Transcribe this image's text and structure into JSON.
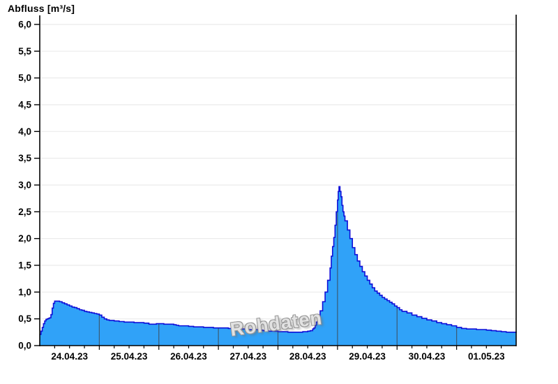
{
  "chart": {
    "title": "Abfluss [m³/s]",
    "watermark": "Rohdaten"
  },
  "chart_data": {
    "type": "area",
    "title": "Abfluss [m³/s]",
    "xlabel": "",
    "ylabel": "Abfluss [m³/s]",
    "grid": true,
    "watermark": "Rohdaten",
    "x_axis": {
      "tick_labels": [
        "24.04.23",
        "25.04.23",
        "26.04.23",
        "27.04.23",
        "28.04.23",
        "29.04.23",
        "30.04.23",
        "01.05.23"
      ],
      "range_days": 8,
      "start_label": "24.04.23",
      "minor_tick_hours": 6,
      "day_boundary_line_hours": 24
    },
    "y_axis": {
      "min": 0.0,
      "max": 6.0,
      "step": 0.5,
      "tick_labels": [
        "0,0",
        "0,5",
        "1,0",
        "1,5",
        "2,0",
        "2,5",
        "3,0",
        "3,5",
        "4,0",
        "4,5",
        "5,0",
        "5,5",
        "6,0"
      ]
    },
    "colors": {
      "fill": "#30a2f8",
      "line": "#0f0fd8",
      "grid": "#ebebeb",
      "day_line": "#3a5a74",
      "axis": "#000000",
      "watermark": "#bdbdbd"
    },
    "series": [
      {
        "name": "Abfluss",
        "unit": "m³/s",
        "style": "stepped-area",
        "x_unit": "hours_from_24.04.23_00:00",
        "peak_value": 2.97,
        "points": [
          [
            0,
            0.21
          ],
          [
            0.5,
            0.27
          ],
          [
            1,
            0.34
          ],
          [
            1.5,
            0.41
          ],
          [
            2,
            0.46
          ],
          [
            2.5,
            0.49
          ],
          [
            3,
            0.5
          ],
          [
            3.5,
            0.51
          ],
          [
            4,
            0.52
          ],
          [
            4.5,
            0.58
          ],
          [
            5,
            0.7
          ],
          [
            5.5,
            0.79
          ],
          [
            6,
            0.83
          ],
          [
            7,
            0.83
          ],
          [
            8,
            0.82
          ],
          [
            9,
            0.8
          ],
          [
            10,
            0.78
          ],
          [
            11,
            0.76
          ],
          [
            12,
            0.74
          ],
          [
            13,
            0.72
          ],
          [
            14,
            0.71
          ],
          [
            15,
            0.69
          ],
          [
            16,
            0.67
          ],
          [
            17,
            0.66
          ],
          [
            18,
            0.64
          ],
          [
            19,
            0.63
          ],
          [
            20,
            0.62
          ],
          [
            21,
            0.61
          ],
          [
            22,
            0.6
          ],
          [
            23,
            0.59
          ],
          [
            24,
            0.57
          ],
          [
            25,
            0.53
          ],
          [
            26,
            0.5
          ],
          [
            27,
            0.48
          ],
          [
            28,
            0.47
          ],
          [
            30,
            0.46
          ],
          [
            32,
            0.45
          ],
          [
            34,
            0.44
          ],
          [
            36,
            0.44
          ],
          [
            38,
            0.43
          ],
          [
            40,
            0.43
          ],
          [
            42,
            0.42
          ],
          [
            44,
            0.4
          ],
          [
            46,
            0.4
          ],
          [
            47,
            0.41
          ],
          [
            48,
            0.41
          ],
          [
            50,
            0.4
          ],
          [
            52,
            0.4
          ],
          [
            54,
            0.39
          ],
          [
            55,
            0.38
          ],
          [
            56,
            0.37
          ],
          [
            58,
            0.37
          ],
          [
            60,
            0.36
          ],
          [
            62,
            0.35
          ],
          [
            64,
            0.35
          ],
          [
            66,
            0.34
          ],
          [
            68,
            0.34
          ],
          [
            70,
            0.33
          ],
          [
            72,
            0.33
          ],
          [
            74,
            0.33
          ],
          [
            76,
            0.32
          ],
          [
            78,
            0.32
          ],
          [
            80,
            0.31
          ],
          [
            82,
            0.31
          ],
          [
            84,
            0.3
          ],
          [
            86,
            0.3
          ],
          [
            88,
            0.29
          ],
          [
            90,
            0.28
          ],
          [
            92,
            0.27
          ],
          [
            94,
            0.27
          ],
          [
            96,
            0.26
          ],
          [
            98,
            0.26
          ],
          [
            100,
            0.25
          ],
          [
            102,
            0.25
          ],
          [
            104,
            0.25
          ],
          [
            106,
            0.26
          ],
          [
            108,
            0.27
          ],
          [
            109,
            0.28
          ],
          [
            110,
            0.31
          ],
          [
            110.5,
            0.33
          ],
          [
            111,
            0.38
          ],
          [
            111.5,
            0.44
          ],
          [
            112,
            0.5
          ],
          [
            113,
            0.65
          ],
          [
            114,
            0.82
          ],
          [
            115,
            1.0
          ],
          [
            116,
            1.22
          ],
          [
            117,
            1.45
          ],
          [
            117.5,
            1.67
          ],
          [
            118,
            1.85
          ],
          [
            118.5,
            2.02
          ],
          [
            119,
            2.25
          ],
          [
            119.5,
            2.5
          ],
          [
            120,
            2.72
          ],
          [
            120.3,
            2.88
          ],
          [
            120.6,
            2.97
          ],
          [
            121,
            2.88
          ],
          [
            121.4,
            2.78
          ],
          [
            121.8,
            2.62
          ],
          [
            122.2,
            2.5
          ],
          [
            122.6,
            2.42
          ],
          [
            123,
            2.33
          ],
          [
            124,
            2.16
          ],
          [
            125,
            2.0
          ],
          [
            126,
            1.83
          ],
          [
            127,
            1.7
          ],
          [
            128,
            1.58
          ],
          [
            129,
            1.48
          ],
          [
            130,
            1.38
          ],
          [
            131,
            1.3
          ],
          [
            132,
            1.22
          ],
          [
            133,
            1.15
          ],
          [
            134,
            1.08
          ],
          [
            135,
            1.02
          ],
          [
            136,
            0.98
          ],
          [
            137,
            0.94
          ],
          [
            138,
            0.9
          ],
          [
            139,
            0.87
          ],
          [
            140,
            0.84
          ],
          [
            141,
            0.81
          ],
          [
            142,
            0.78
          ],
          [
            143,
            0.74
          ],
          [
            144,
            0.71
          ],
          [
            145,
            0.67
          ],
          [
            146,
            0.64
          ],
          [
            148,
            0.61
          ],
          [
            150,
            0.57
          ],
          [
            152,
            0.54
          ],
          [
            154,
            0.51
          ],
          [
            156,
            0.48
          ],
          [
            158,
            0.46
          ],
          [
            160,
            0.43
          ],
          [
            162,
            0.41
          ],
          [
            164,
            0.39
          ],
          [
            166,
            0.37
          ],
          [
            168,
            0.34
          ],
          [
            170,
            0.32
          ],
          [
            172,
            0.31
          ],
          [
            174,
            0.31
          ],
          [
            176,
            0.3
          ],
          [
            178,
            0.3
          ],
          [
            180,
            0.29
          ],
          [
            182,
            0.28
          ],
          [
            184,
            0.27
          ],
          [
            186,
            0.26
          ],
          [
            188,
            0.25
          ],
          [
            190,
            0.25
          ],
          [
            192,
            0.24
          ]
        ]
      }
    ]
  }
}
